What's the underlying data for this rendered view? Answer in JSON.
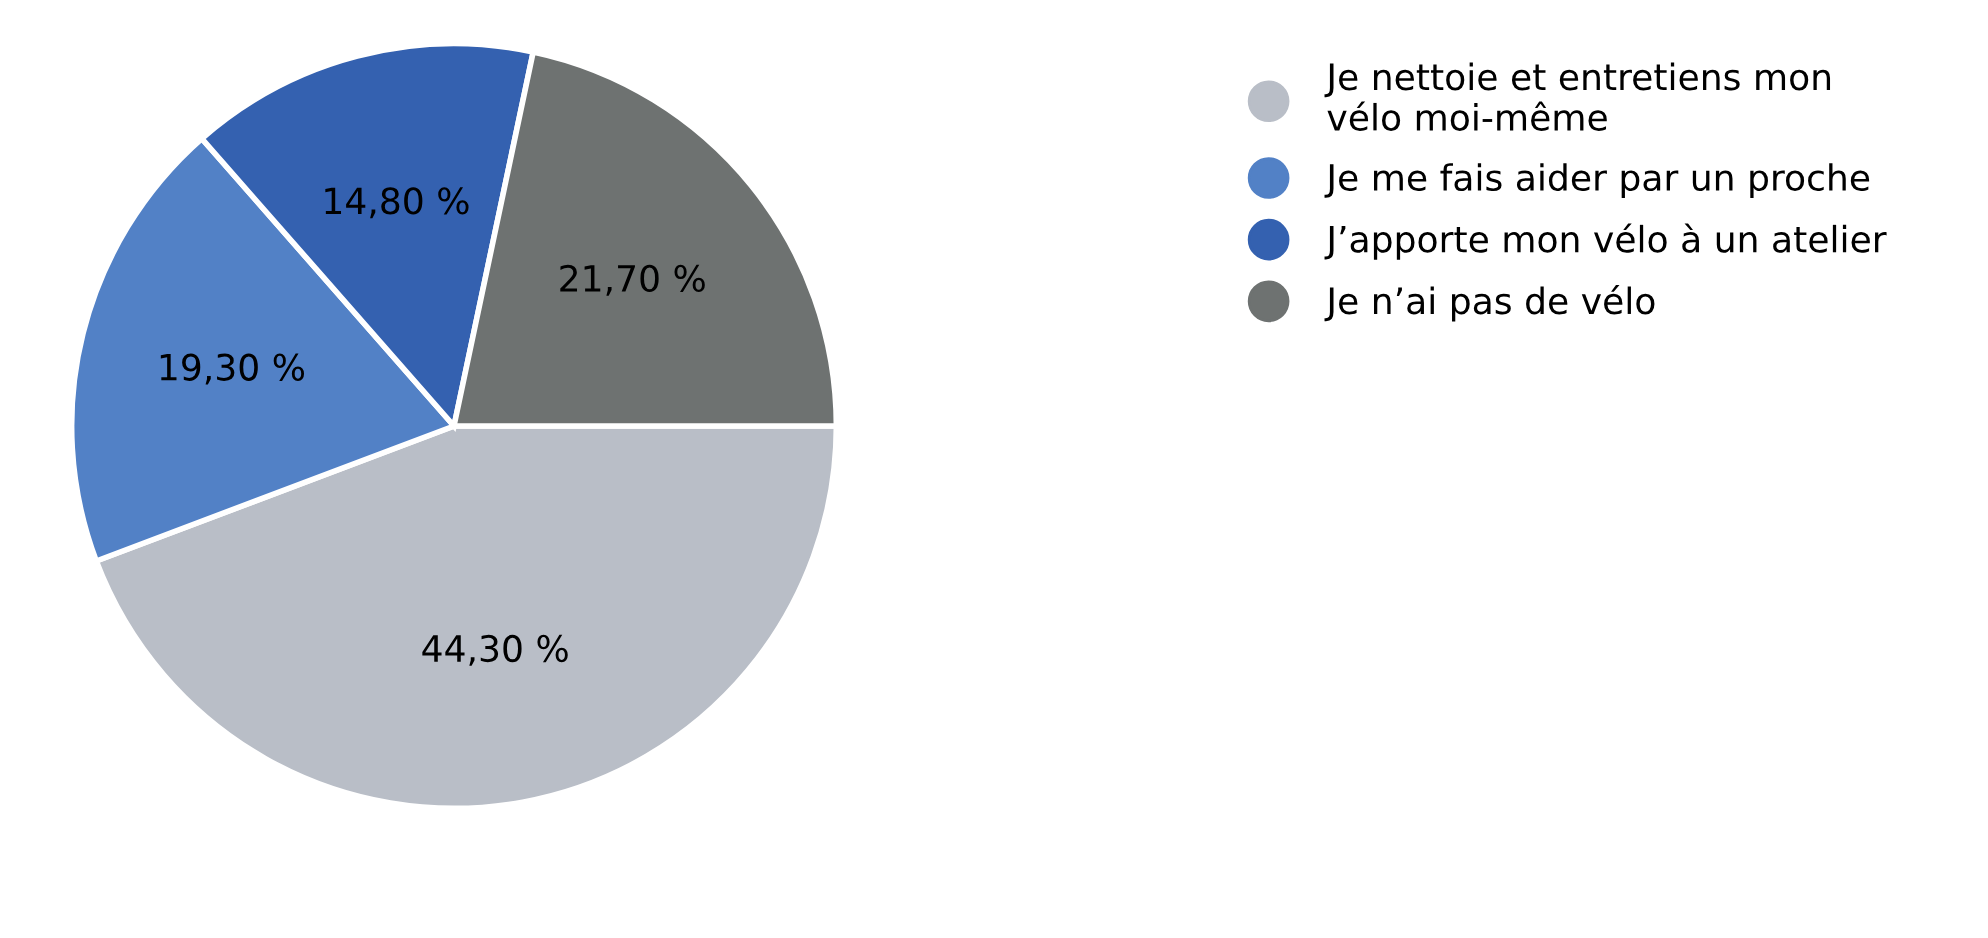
{
  "chart_data": {
    "type": "pie",
    "categories": [
      "Je nettoie et entretiens mon\nvélo moi-même",
      "Je me fais aider par un proche",
      "J’apporte mon vélo à un atelier",
      "Je n’ai pas de vélo"
    ],
    "values": [
      44.3,
      19.3,
      14.8,
      21.7
    ],
    "value_labels": [
      "44,30 %",
      "19,30 %",
      "14,80 %",
      "21,70 %"
    ],
    "colors": [
      "#b9bec7",
      "#5281c6",
      "#3461b0",
      "#6e7271"
    ],
    "legend": "right"
  }
}
